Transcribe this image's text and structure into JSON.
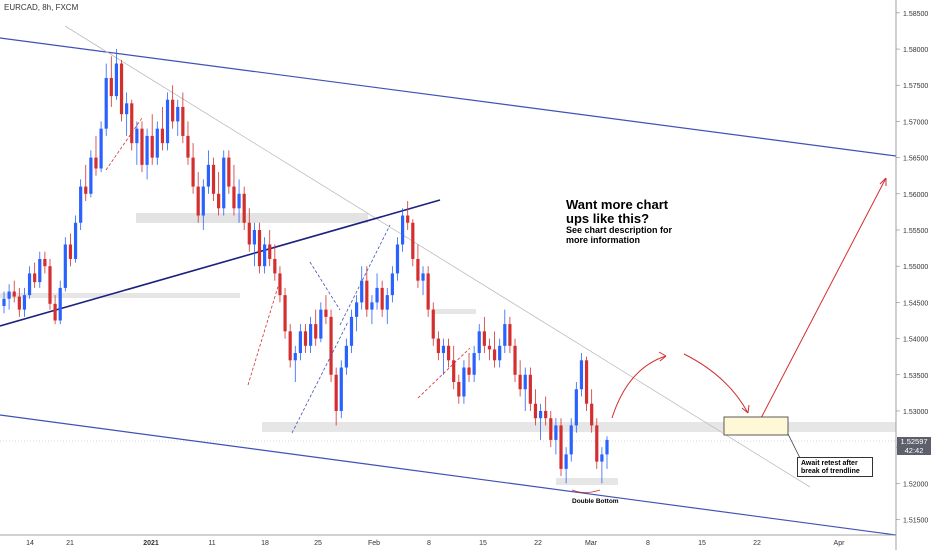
{
  "header": {
    "symbol_label": "EURCAD, 8h, FXCM"
  },
  "colors": {
    "bull": "#2962ff",
    "bear": "#d32f2f",
    "channel": "#3f51b5",
    "trend": "#1a237e",
    "zone": "#e6e6e6",
    "target_zone": "#fff8d6"
  },
  "price_axis": {
    "labels": [
      "1.58500",
      "1.58000",
      "1.57500",
      "1.57000",
      "1.56500",
      "1.56000",
      "1.55500",
      "1.55000",
      "1.54500",
      "1.54000",
      "1.53500",
      "1.53000",
      "1.52500",
      "1.52000",
      "1.51500"
    ],
    "current_price": "1.52597",
    "countdown": "42:42"
  },
  "time_axis": {
    "labels": [
      "14",
      "21",
      "2021",
      "11",
      "18",
      "25",
      "Feb",
      "8",
      "15",
      "22",
      "Mar",
      "8",
      "15",
      "22",
      "Apr"
    ]
  },
  "annotations": {
    "headline_1": "Want more chart",
    "headline_2": "ups like this?",
    "sub_1": "See chart description for",
    "sub_2": "more information",
    "note_1": "Await retest after",
    "note_2": "break of trendline",
    "pattern_label": "Double Bottom"
  },
  "chart_data": {
    "type": "candlestick",
    "ylim": [
      1.513,
      1.5865
    ],
    "price_series_start_end": [
      1.5445,
      1.526
    ],
    "candles": [
      [
        1.5445,
        1.5465,
        1.5435,
        1.5455
      ],
      [
        1.5455,
        1.5475,
        1.544,
        1.5465
      ],
      [
        1.5465,
        1.548,
        1.545,
        1.5458
      ],
      [
        1.5458,
        1.547,
        1.543,
        1.544
      ],
      [
        1.544,
        1.547,
        1.543,
        1.546
      ],
      [
        1.546,
        1.55,
        1.5455,
        1.549
      ],
      [
        1.549,
        1.5505,
        1.547,
        1.5478
      ],
      [
        1.5478,
        1.552,
        1.547,
        1.551
      ],
      [
        1.551,
        1.552,
        1.549,
        1.55
      ],
      [
        1.55,
        1.551,
        1.544,
        1.5448
      ],
      [
        1.5448,
        1.546,
        1.542,
        1.5425
      ],
      [
        1.5425,
        1.548,
        1.542,
        1.547
      ],
      [
        1.547,
        1.554,
        1.5465,
        1.553
      ],
      [
        1.553,
        1.5545,
        1.55,
        1.551
      ],
      [
        1.551,
        1.557,
        1.5505,
        1.556
      ],
      [
        1.556,
        1.562,
        1.555,
        1.561
      ],
      [
        1.561,
        1.564,
        1.559,
        1.56
      ],
      [
        1.56,
        1.566,
        1.5595,
        1.565
      ],
      [
        1.565,
        1.568,
        1.5625,
        1.5635
      ],
      [
        1.5635,
        1.57,
        1.563,
        1.569
      ],
      [
        1.569,
        1.578,
        1.568,
        1.576
      ],
      [
        1.576,
        1.579,
        1.572,
        1.5735
      ],
      [
        1.5735,
        1.58,
        1.573,
        1.578
      ],
      [
        1.578,
        1.5785,
        1.57,
        1.571
      ],
      [
        1.571,
        1.574,
        1.568,
        1.5725
      ],
      [
        1.5725,
        1.573,
        1.566,
        1.567
      ],
      [
        1.567,
        1.57,
        1.564,
        1.569
      ],
      [
        1.569,
        1.57,
        1.563,
        1.564
      ],
      [
        1.564,
        1.569,
        1.562,
        1.568
      ],
      [
        1.568,
        1.571,
        1.564,
        1.565
      ],
      [
        1.565,
        1.57,
        1.564,
        1.569
      ],
      [
        1.569,
        1.572,
        1.566,
        1.567
      ],
      [
        1.567,
        1.574,
        1.566,
        1.573
      ],
      [
        1.573,
        1.575,
        1.569,
        1.57
      ],
      [
        1.57,
        1.573,
        1.568,
        1.572
      ],
      [
        1.572,
        1.574,
        1.567,
        1.568
      ],
      [
        1.568,
        1.57,
        1.564,
        1.565
      ],
      [
        1.565,
        1.567,
        1.56,
        1.561
      ],
      [
        1.561,
        1.563,
        1.556,
        1.557
      ],
      [
        1.557,
        1.562,
        1.555,
        1.561
      ],
      [
        1.561,
        1.566,
        1.56,
        1.564
      ],
      [
        1.564,
        1.565,
        1.559,
        1.56
      ],
      [
        1.56,
        1.563,
        1.557,
        1.558
      ],
      [
        1.558,
        1.566,
        1.557,
        1.565
      ],
      [
        1.565,
        1.566,
        1.56,
        1.561
      ],
      [
        1.561,
        1.564,
        1.557,
        1.558
      ],
      [
        1.558,
        1.562,
        1.556,
        1.56
      ],
      [
        1.56,
        1.561,
        1.555,
        1.556
      ],
      [
        1.556,
        1.558,
        1.552,
        1.553
      ],
      [
        1.553,
        1.556,
        1.55,
        1.555
      ],
      [
        1.555,
        1.556,
        1.549,
        1.55
      ],
      [
        1.55,
        1.554,
        1.549,
        1.553
      ],
      [
        1.553,
        1.555,
        1.55,
        1.551
      ],
      [
        1.551,
        1.553,
        1.548,
        1.549
      ],
      [
        1.549,
        1.55,
        1.545,
        1.546
      ],
      [
        1.546,
        1.547,
        1.54,
        1.541
      ],
      [
        1.541,
        1.542,
        1.536,
        1.537
      ],
      [
        1.537,
        1.539,
        1.534,
        1.538
      ],
      [
        1.538,
        1.542,
        1.537,
        1.541
      ],
      [
        1.541,
        1.542,
        1.538,
        1.539
      ],
      [
        1.539,
        1.543,
        1.538,
        1.542
      ],
      [
        1.542,
        1.544,
        1.539,
        1.54
      ],
      [
        1.54,
        1.545,
        1.5395,
        1.544
      ],
      [
        1.544,
        1.546,
        1.542,
        1.543
      ],
      [
        1.543,
        1.544,
        1.534,
        1.535
      ],
      [
        1.535,
        1.536,
        1.528,
        1.53
      ],
      [
        1.53,
        1.537,
        1.529,
        1.536
      ],
      [
        1.536,
        1.54,
        1.535,
        1.539
      ],
      [
        1.539,
        1.544,
        1.538,
        1.543
      ],
      [
        1.543,
        1.546,
        1.541,
        1.545
      ],
      [
        1.545,
        1.55,
        1.544,
        1.548
      ],
      [
        1.548,
        1.55,
        1.543,
        1.544
      ],
      [
        1.544,
        1.546,
        1.542,
        1.545
      ],
      [
        1.545,
        1.549,
        1.544,
        1.547
      ],
      [
        1.547,
        1.548,
        1.543,
        1.544
      ],
      [
        1.544,
        1.547,
        1.542,
        1.546
      ],
      [
        1.546,
        1.55,
        1.545,
        1.549
      ],
      [
        1.549,
        1.554,
        1.548,
        1.553
      ],
      [
        1.553,
        1.558,
        1.552,
        1.557
      ],
      [
        1.557,
        1.559,
        1.555,
        1.556
      ],
      [
        1.556,
        1.5565,
        1.55,
        1.551
      ],
      [
        1.551,
        1.553,
        1.547,
        1.548
      ],
      [
        1.548,
        1.55,
        1.546,
        1.549
      ],
      [
        1.549,
        1.55,
        1.543,
        1.544
      ],
      [
        1.544,
        1.545,
        1.539,
        1.54
      ],
      [
        1.54,
        1.541,
        1.537,
        1.538
      ],
      [
        1.538,
        1.54,
        1.535,
        1.539
      ],
      [
        1.539,
        1.54,
        1.536,
        1.537
      ],
      [
        1.537,
        1.539,
        1.533,
        1.534
      ],
      [
        1.534,
        1.535,
        1.531,
        1.532
      ],
      [
        1.532,
        1.537,
        1.531,
        1.536
      ],
      [
        1.536,
        1.538,
        1.534,
        1.535
      ],
      [
        1.535,
        1.539,
        1.534,
        1.538
      ],
      [
        1.538,
        1.542,
        1.537,
        1.541
      ],
      [
        1.541,
        1.543,
        1.538,
        1.539
      ],
      [
        1.539,
        1.54,
        1.537,
        1.5385
      ],
      [
        1.5385,
        1.541,
        1.536,
        1.537
      ],
      [
        1.537,
        1.54,
        1.536,
        1.539
      ],
      [
        1.539,
        1.544,
        1.538,
        1.542
      ],
      [
        1.542,
        1.543,
        1.538,
        1.539
      ],
      [
        1.539,
        1.54,
        1.534,
        1.535
      ],
      [
        1.535,
        1.537,
        1.532,
        1.533
      ],
      [
        1.533,
        1.536,
        1.53,
        1.535
      ],
      [
        1.535,
        1.536,
        1.53,
        1.531
      ],
      [
        1.531,
        1.533,
        1.528,
        1.529
      ],
      [
        1.529,
        1.531,
        1.526,
        1.53
      ],
      [
        1.53,
        1.532,
        1.528,
        1.529
      ],
      [
        1.529,
        1.53,
        1.525,
        1.526
      ],
      [
        1.526,
        1.529,
        1.524,
        1.528
      ],
      [
        1.528,
        1.529,
        1.521,
        1.522
      ],
      [
        1.522,
        1.525,
        1.52,
        1.524
      ],
      [
        1.524,
        1.529,
        1.523,
        1.528
      ],
      [
        1.528,
        1.534,
        1.527,
        1.533
      ],
      [
        1.533,
        1.538,
        1.532,
        1.537
      ],
      [
        1.537,
        1.5375,
        1.53,
        1.531
      ],
      [
        1.531,
        1.533,
        1.527,
        1.528
      ],
      [
        1.528,
        1.529,
        1.522,
        1.523
      ],
      [
        1.523,
        1.525,
        1.52,
        1.524
      ],
      [
        1.524,
        1.5265,
        1.522,
        1.526
      ]
    ],
    "channel_upper": [
      [
        0,
        1.5805
      ],
      [
        1.0,
        1.5645
      ]
    ],
    "channel_lower": [
      [
        0,
        1.529
      ],
      [
        1.0,
        1.5135
      ]
    ]
  }
}
